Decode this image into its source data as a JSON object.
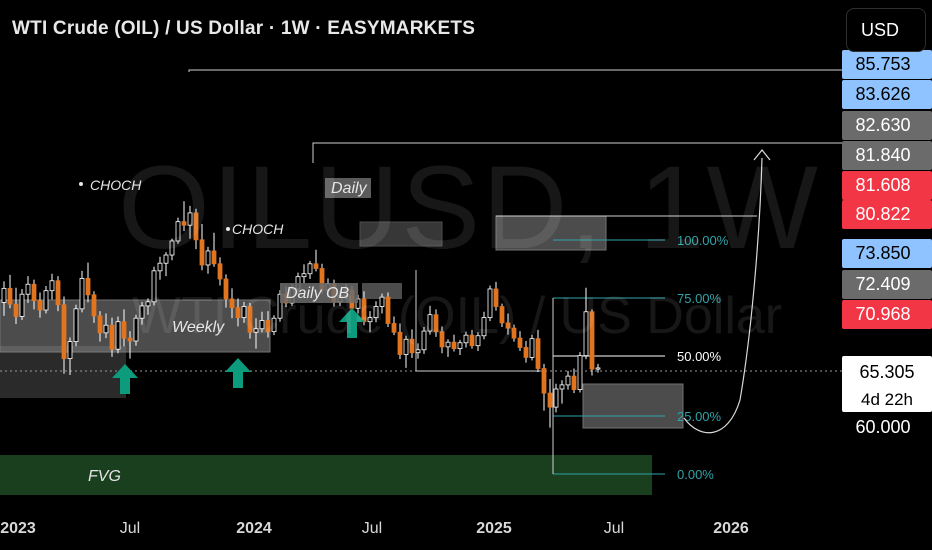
{
  "header": {
    "title": "WTI Crude (OIL) / US Dollar · 1W · EASYMARKETS",
    "currency_button": "USD"
  },
  "watermark": {
    "symbol": "OILUSD, 1W",
    "description": "WTI Crude (OIL) / US Dollar"
  },
  "colors": {
    "background": "#000000",
    "candle": "#e2741e",
    "candle_wick": "#ffffff",
    "fvg_zone": "#1e4a23",
    "zone_gray": "#8a8a8a",
    "fib_line": "#2fa3a8",
    "arrow": "#0c9b7c",
    "badge_blue": "#8fc3ff",
    "badge_red": "#f23645",
    "badge_gray": "#6b6b6b"
  },
  "chart_data": {
    "type": "candlestick",
    "title": "WTI Crude (OIL) / US Dollar · 1W · EASYMARKETS",
    "x_axis_labels": [
      "2023",
      "Jul",
      "2024",
      "Jul",
      "2025",
      "Jul",
      "2026"
    ],
    "y_axis_labels": [
      {
        "value": 85.753,
        "text": "85.753",
        "style": "blue"
      },
      {
        "value": 83.626,
        "text": "83.626",
        "style": "blue"
      },
      {
        "value": 82.63,
        "text": "82.630",
        "style": "gray"
      },
      {
        "value": 81.84,
        "text": "81.840",
        "style": "gray"
      },
      {
        "value": 81.608,
        "text": "81.608",
        "style": "red"
      },
      {
        "value": 80.822,
        "text": "80.822",
        "style": "red"
      },
      {
        "value": 73.85,
        "text": "73.850",
        "style": "blue"
      },
      {
        "value": 72.409,
        "text": "72.409",
        "style": "gray"
      },
      {
        "value": 70.968,
        "text": "70.968",
        "style": "red"
      },
      {
        "value": 65.305,
        "text": "65.305",
        "sub": "4d 22h",
        "style": "current"
      },
      {
        "value": 60.0,
        "text": "60.000",
        "style": "plain"
      }
    ],
    "current_price": 65.305,
    "countdown": "4d 22h",
    "fib_levels": [
      {
        "label": "100.00%",
        "value": 79.0
      },
      {
        "label": "75.00%",
        "value": 74.2
      },
      {
        "label": "50.00%",
        "value": 67.3
      },
      {
        "label": "25.00%",
        "value": 60.8
      },
      {
        "label": "0.00%",
        "value": 55.1
      }
    ],
    "annotations": [
      {
        "label": "CHOCH",
        "type": "structure"
      },
      {
        "label": "CHOCH",
        "type": "structure"
      },
      {
        "label": "Daily",
        "type": "zone"
      },
      {
        "label": "Daily OB",
        "type": "zone"
      },
      {
        "label": "Weekly",
        "type": "zone"
      },
      {
        "label": "FVG",
        "type": "zone"
      }
    ],
    "candles": [
      [
        76.5,
        80.1,
        74.2,
        78.9
      ],
      [
        78.9,
        81.2,
        75.5,
        76.2
      ],
      [
        76.2,
        79.0,
        72.8,
        74.1
      ],
      [
        74.1,
        78.8,
        73.5,
        77.9
      ],
      [
        77.9,
        81.0,
        76.4,
        79.6
      ],
      [
        79.6,
        80.4,
        75.3,
        76.8
      ],
      [
        76.8,
        78.2,
        73.9,
        75.2
      ],
      [
        75.2,
        79.3,
        74.6,
        78.5
      ],
      [
        78.5,
        81.4,
        77.0,
        80.2
      ],
      [
        80.2,
        81.0,
        75.0,
        76.1
      ],
      [
        76.1,
        77.5,
        64.3,
        66.9
      ],
      [
        66.9,
        70.5,
        64.1,
        69.8
      ],
      [
        69.8,
        76.1,
        69.0,
        75.4
      ],
      [
        75.4,
        81.9,
        74.8,
        80.6
      ],
      [
        80.6,
        83.3,
        76.5,
        77.8
      ],
      [
        77.8,
        78.4,
        73.0,
        74.2
      ],
      [
        74.2,
        75.0,
        69.8,
        71.3
      ],
      [
        71.3,
        74.6,
        70.4,
        72.6
      ],
      [
        72.6,
        73.9,
        67.2,
        68.5
      ],
      [
        68.5,
        74.1,
        67.8,
        73.2
      ],
      [
        73.2,
        75.3,
        69.0,
        70.4
      ],
      [
        70.4,
        71.6,
        66.9,
        69.9
      ],
      [
        69.9,
        74.4,
        69.1,
        73.8
      ],
      [
        73.8,
        76.6,
        72.7,
        75.9
      ],
      [
        75.9,
        77.2,
        74.4,
        76.6
      ],
      [
        76.6,
        82.6,
        76.0,
        81.9
      ],
      [
        81.9,
        84.3,
        80.4,
        83.2
      ],
      [
        83.2,
        85.1,
        81.0,
        84.6
      ],
      [
        84.6,
        87.4,
        83.7,
        87.0
      ],
      [
        87.0,
        91.0,
        86.5,
        90.3
      ],
      [
        90.3,
        93.8,
        88.7,
        89.7
      ],
      [
        89.7,
        93.0,
        87.4,
        91.8
      ],
      [
        91.8,
        92.5,
        85.6,
        87.2
      ],
      [
        87.2,
        89.9,
        82.0,
        82.9
      ],
      [
        82.9,
        86.0,
        81.4,
        85.3
      ],
      [
        85.3,
        88.4,
        82.6,
        83.1
      ],
      [
        83.1,
        84.2,
        79.4,
        80.5
      ],
      [
        80.5,
        81.3,
        75.6,
        77.1
      ],
      [
        77.1,
        78.9,
        73.8,
        75.6
      ],
      [
        75.6,
        77.2,
        72.4,
        73.9
      ],
      [
        73.9,
        76.6,
        73.0,
        75.8
      ],
      [
        75.8,
        76.4,
        70.3,
        71.4
      ],
      [
        71.4,
        73.8,
        68.6,
        72.0
      ],
      [
        72.0,
        74.9,
        71.4,
        73.4
      ],
      [
        73.4,
        75.0,
        70.5,
        71.5
      ],
      [
        71.5,
        74.3,
        70.9,
        73.8
      ],
      [
        73.8,
        78.6,
        73.2,
        77.9
      ],
      [
        77.9,
        79.2,
        75.7,
        76.4
      ],
      [
        76.4,
        79.6,
        75.9,
        78.8
      ],
      [
        78.8,
        81.6,
        77.9,
        80.9
      ],
      [
        80.9,
        83.0,
        79.8,
        81.4
      ],
      [
        81.4,
        83.6,
        80.5,
        83.1
      ],
      [
        83.1,
        85.5,
        81.8,
        82.3
      ],
      [
        82.3,
        83.1,
        78.0,
        78.6
      ],
      [
        78.6,
        80.6,
        77.4,
        79.7
      ],
      [
        79.7,
        80.4,
        75.8,
        76.6
      ],
      [
        76.6,
        78.4,
        75.9,
        77.7
      ],
      [
        77.7,
        79.6,
        77.0,
        78.6
      ],
      [
        78.6,
        79.3,
        74.8,
        75.5
      ],
      [
        75.5,
        77.8,
        74.6,
        77.1
      ],
      [
        77.1,
        78.4,
        72.6,
        73.2
      ],
      [
        73.2,
        75.0,
        71.4,
        73.9
      ],
      [
        73.9,
        76.7,
        73.1,
        75.8
      ],
      [
        75.8,
        78.0,
        74.6,
        77.4
      ],
      [
        77.4,
        78.2,
        72.3,
        72.9
      ],
      [
        72.9,
        74.1,
        70.9,
        71.4
      ],
      [
        71.4,
        72.9,
        66.8,
        67.6
      ],
      [
        67.6,
        70.8,
        65.3,
        70.2
      ],
      [
        70.2,
        71.9,
        67.0,
        67.9
      ],
      [
        67.9,
        69.5,
        66.9,
        68.4
      ],
      [
        68.4,
        72.3,
        67.7,
        71.6
      ],
      [
        71.6,
        75.9,
        71.0,
        74.4
      ],
      [
        74.4,
        75.3,
        70.6,
        71.5
      ],
      [
        71.5,
        72.4,
        67.8,
        68.9
      ],
      [
        68.9,
        70.2,
        67.2,
        69.7
      ],
      [
        69.7,
        71.0,
        68.1,
        68.6
      ],
      [
        68.6,
        70.1,
        67.5,
        69.6
      ],
      [
        69.6,
        71.5,
        68.8,
        70.9
      ],
      [
        70.9,
        71.8,
        68.6,
        69.1
      ],
      [
        69.1,
        71.4,
        68.2,
        70.8
      ],
      [
        70.8,
        74.9,
        70.2,
        73.9
      ],
      [
        73.9,
        79.4,
        73.3,
        78.8
      ],
      [
        78.8,
        80.0,
        75.1,
        75.8
      ],
      [
        75.8,
        76.3,
        72.3,
        73.0
      ],
      [
        73.0,
        74.6,
        71.0,
        72.1
      ],
      [
        72.1,
        72.7,
        69.8,
        70.4
      ],
      [
        70.4,
        71.6,
        68.2,
        68.8
      ],
      [
        68.8,
        69.9,
        66.2,
        67.1
      ],
      [
        67.1,
        71.0,
        66.6,
        70.3
      ],
      [
        70.3,
        71.8,
        64.6,
        65.2
      ],
      [
        65.2,
        66.0,
        58.0,
        61.0
      ],
      [
        61.0,
        63.4,
        55.1,
        58.6
      ],
      [
        58.6,
        62.6,
        57.7,
        61.7
      ],
      [
        61.7,
        63.2,
        59.2,
        62.4
      ],
      [
        62.4,
        64.8,
        61.6,
        63.9
      ],
      [
        63.9,
        65.2,
        61.0,
        61.6
      ],
      [
        61.6,
        68.0,
        61.1,
        67.4
      ],
      [
        67.4,
        79.0,
        66.8,
        74.9
      ],
      [
        74.9,
        75.3,
        64.0,
        65.1
      ],
      [
        65.1,
        66.0,
        64.5,
        65.3
      ]
    ]
  }
}
